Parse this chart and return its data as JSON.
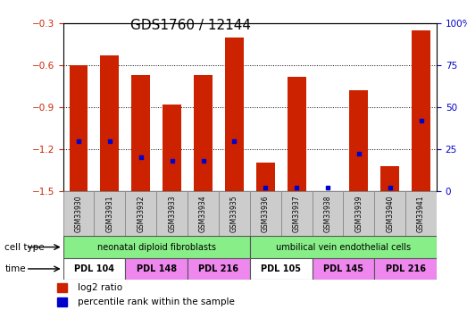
{
  "title": "GDS1760 / 12144",
  "samples": [
    "GSM33930",
    "GSM33931",
    "GSM33932",
    "GSM33933",
    "GSM33934",
    "GSM33935",
    "GSM33936",
    "GSM33937",
    "GSM33938",
    "GSM33939",
    "GSM33940",
    "GSM33941"
  ],
  "log2_ratio": [
    -0.6,
    -0.53,
    -0.67,
    -0.88,
    -0.67,
    -0.4,
    -1.3,
    -0.68,
    -1.5,
    -0.78,
    -1.32,
    -0.35
  ],
  "percentile_rank": [
    30,
    30,
    20,
    18,
    18,
    30,
    2,
    2,
    2,
    22,
    2,
    42
  ],
  "bar_bottom": -1.5,
  "y_min": -1.5,
  "y_max": -0.3,
  "y_ticks": [
    -1.5,
    -1.2,
    -0.9,
    -0.6,
    -0.3
  ],
  "y2_ticks": [
    0,
    25,
    50,
    75,
    100
  ],
  "bar_color": "#cc2200",
  "dot_color": "#0000cc",
  "cell_type_groups": [
    {
      "label": "neonatal diploid fibroblasts",
      "start": 0,
      "end": 6,
      "color": "#88ee88"
    },
    {
      "label": "umbilical vein endothelial cells",
      "start": 6,
      "end": 12,
      "color": "#88ee88"
    }
  ],
  "time_groups": [
    {
      "label": "PDL 104",
      "start": 0,
      "end": 2,
      "color": "#ffffff"
    },
    {
      "label": "PDL 148",
      "start": 2,
      "end": 4,
      "color": "#ee88ee"
    },
    {
      "label": "PDL 216",
      "start": 4,
      "end": 6,
      "color": "#ee88ee"
    },
    {
      "label": "PDL 105",
      "start": 6,
      "end": 8,
      "color": "#ffffff"
    },
    {
      "label": "PDL 145",
      "start": 8,
      "end": 10,
      "color": "#ee88ee"
    },
    {
      "label": "PDL 216",
      "start": 10,
      "end": 12,
      "color": "#ee88ee"
    }
  ],
  "bar_width": 0.6,
  "background_color": "#ffffff",
  "title_fontsize": 11,
  "tick_fontsize": 7.5,
  "cell_type_label": "cell type",
  "time_label": "time",
  "sample_box_color": "#cccccc"
}
